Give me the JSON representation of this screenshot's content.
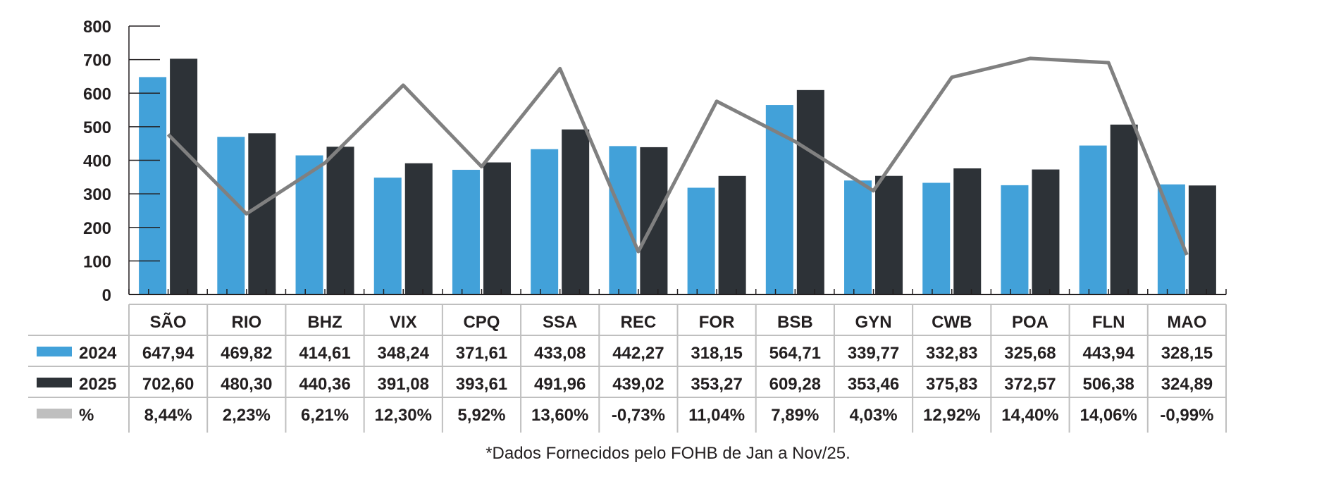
{
  "chart_data": {
    "type": "bar",
    "categories": [
      "SÃO",
      "RIO",
      "BHZ",
      "VIX",
      "CPQ",
      "SSA",
      "REC",
      "FOR",
      "BSB",
      "GYN",
      "CWB",
      "POA",
      "FLN",
      "MAO"
    ],
    "ylim": [
      0,
      800
    ],
    "yticks": [
      0,
      100,
      200,
      300,
      400,
      500,
      600,
      700,
      800
    ],
    "grid": false,
    "series": [
      {
        "name": "2024",
        "kind": "bar",
        "color": "#42a1d9",
        "values": [
          647.94,
          469.82,
          414.61,
          348.24,
          371.61,
          433.08,
          442.27,
          318.15,
          564.71,
          339.77,
          332.83,
          325.68,
          443.94,
          328.15
        ],
        "labels": [
          "647,94",
          "469,82",
          "414,61",
          "348,24",
          "371,61",
          "433,08",
          "442,27",
          "318,15",
          "564,71",
          "339,77",
          "332,83",
          "325,68",
          "443,94",
          "328,15"
        ]
      },
      {
        "name": "2025",
        "kind": "bar",
        "color": "#2d3237",
        "values": [
          702.6,
          480.3,
          440.36,
          391.08,
          393.61,
          491.96,
          439.02,
          353.27,
          609.28,
          353.46,
          375.83,
          372.57,
          506.38,
          324.89
        ],
        "labels": [
          "702,60",
          "480,30",
          "440,36",
          "391,08",
          "393,61",
          "491,96",
          "439,02",
          "353,27",
          "609,28",
          "353,46",
          "375,83",
          "372,57",
          "506,38",
          "324,89"
        ]
      },
      {
        "name": "%",
        "kind": "line",
        "color": "#808080",
        "values": [
          8.44,
          2.23,
          6.21,
          12.3,
          5.92,
          13.6,
          -0.73,
          11.04,
          7.89,
          4.03,
          12.92,
          14.4,
          14.06,
          -0.99
        ],
        "labels": [
          "8,44%",
          "2,23%",
          "6,21%",
          "12,30%",
          "5,92%",
          "13,60%",
          "-0,73%",
          "11,04%",
          "7,89%",
          "4,03%",
          "12,92%",
          "14,40%",
          "14,06%",
          "-0,99%"
        ]
      }
    ]
  },
  "footnote": "*Dados Fornecidos pelo FOHB de Jan a Nov/25."
}
